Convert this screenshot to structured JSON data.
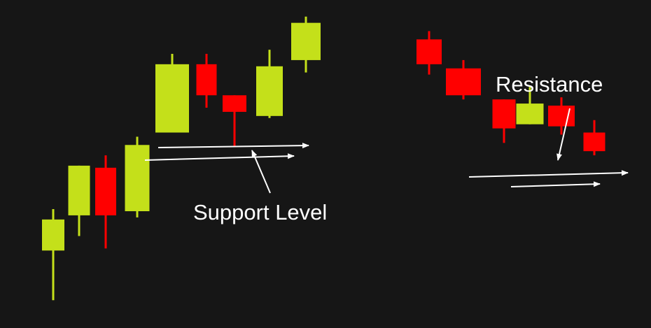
{
  "colors": {
    "background": "#161616",
    "bullish": "#c4e01a",
    "bearish": "#ff0000",
    "line": "#ffffff"
  },
  "labels": {
    "support": "Support Level",
    "resistance": "Resistance"
  },
  "chart_data": [
    {
      "type": "candlestick",
      "name": "support-example",
      "candles": [
        {
          "dir": "up",
          "open": 0.31,
          "high": 0.51,
          "low": 0.07,
          "close": 0.46
        },
        {
          "dir": "up",
          "open": 0.48,
          "high": 0.72,
          "low": 0.38,
          "close": 0.72
        },
        {
          "dir": "down",
          "open": 0.71,
          "high": 0.77,
          "low": 0.32,
          "close": 0.48
        },
        {
          "dir": "up",
          "open": 0.5,
          "high": 0.86,
          "low": 0.47,
          "close": 0.82
        },
        {
          "dir": "up",
          "open": 0.88,
          "high": 1.26,
          "low": 0.88,
          "close": 1.21
        },
        {
          "dir": "down",
          "open": 1.21,
          "high": 1.26,
          "low": 1.0,
          "close": 1.06
        },
        {
          "dir": "down",
          "open": 1.06,
          "high": 1.06,
          "low": 0.81,
          "close": 0.98
        },
        {
          "dir": "up",
          "open": 0.96,
          "high": 1.28,
          "low": 0.95,
          "close": 1.2
        },
        {
          "dir": "up",
          "open": 1.23,
          "high": 1.44,
          "low": 1.17,
          "close": 1.41
        }
      ],
      "annotation": "Support Level"
    },
    {
      "type": "candlestick",
      "name": "resistance-example",
      "candles": [
        {
          "dir": "down",
          "open": 1.33,
          "high": 1.37,
          "low": 1.16,
          "close": 1.21
        },
        {
          "dir": "down",
          "open": 1.19,
          "high": 1.23,
          "low": 1.04,
          "close": 1.06
        },
        {
          "dir": "down",
          "open": 1.04,
          "high": 1.04,
          "low": 0.83,
          "close": 0.9
        },
        {
          "dir": "up",
          "open": 0.92,
          "high": 1.1,
          "low": 0.92,
          "close": 1.02
        },
        {
          "dir": "down",
          "open": 1.01,
          "high": 1.05,
          "low": 0.87,
          "close": 0.91
        },
        {
          "dir": "down",
          "open": 0.88,
          "high": 0.94,
          "low": 0.77,
          "close": 0.79
        }
      ],
      "annotation": "Resistance"
    }
  ]
}
